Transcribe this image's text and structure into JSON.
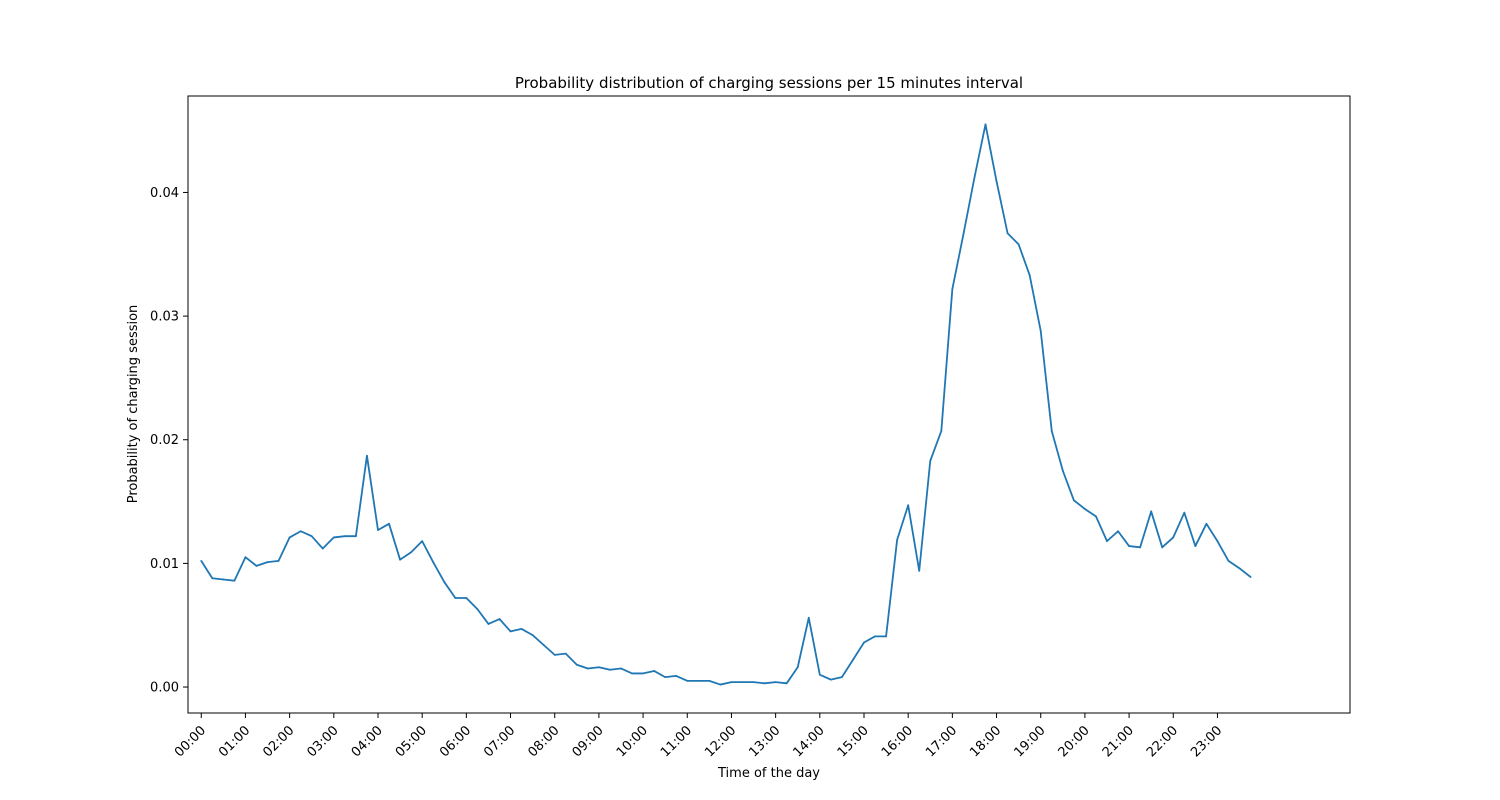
{
  "chart_data": {
    "type": "line",
    "title": "Probability distribution of charging sessions per 15 minutes interval",
    "xlabel": "Time of the day",
    "ylabel": "Probability of charging session",
    "x_tick_labels": [
      "00:00",
      "01:00",
      "02:00",
      "03:00",
      "04:00",
      "05:00",
      "06:00",
      "07:00",
      "08:00",
      "09:00",
      "10:00",
      "11:00",
      "12:00",
      "13:00",
      "14:00",
      "15:00",
      "16:00",
      "17:00",
      "18:00",
      "19:00",
      "20:00",
      "21:00",
      "22:00",
      "23:00"
    ],
    "y_ticks": [
      0.0,
      0.01,
      0.02,
      0.03,
      0.04
    ],
    "y_tick_labels": [
      "0.00",
      "0.01",
      "0.02",
      "0.03",
      "0.04"
    ],
    "ylim": [
      -0.0021,
      0.0478
    ],
    "xlim": [
      -0.3,
      26.0
    ],
    "grid": false,
    "colors": {
      "series": "#1f77b4"
    },
    "series": [
      {
        "values": [
          0.0102,
          0.0088,
          0.0087,
          0.0086,
          0.0105,
          0.0098,
          0.0101,
          0.0102,
          0.0121,
          0.0126,
          0.0122,
          0.0112,
          0.0121,
          0.0122,
          0.0122,
          0.0187,
          0.0127,
          0.0132,
          0.0103,
          0.0109,
          0.0118,
          0.0101,
          0.0085,
          0.0072,
          0.0072,
          0.0063,
          0.0051,
          0.0055,
          0.0045,
          0.0047,
          0.0042,
          0.0034,
          0.0026,
          0.0027,
          0.0018,
          0.0015,
          0.0016,
          0.0014,
          0.0015,
          0.0011,
          0.0011,
          0.0013,
          0.0008,
          0.0009,
          0.0005,
          0.0005,
          0.0005,
          0.0002,
          0.0004,
          0.0004,
          0.0004,
          0.0003,
          0.0004,
          0.0003,
          0.0016,
          0.0056,
          0.001,
          0.0006,
          0.0008,
          0.0022,
          0.0036,
          0.0041,
          0.0041,
          0.0119,
          0.0147,
          0.0094,
          0.0183,
          0.0207,
          0.0322,
          0.0366,
          0.0412,
          0.0455,
          0.0409,
          0.0367,
          0.0358,
          0.0333,
          0.0288,
          0.0207,
          0.0175,
          0.0151,
          0.0144,
          0.0138,
          0.0118,
          0.0126,
          0.0114,
          0.0113,
          0.0142,
          0.0113,
          0.0121,
          0.0141,
          0.0114,
          0.0132,
          0.0118,
          0.0102,
          0.0096,
          0.0089
        ]
      }
    ]
  }
}
